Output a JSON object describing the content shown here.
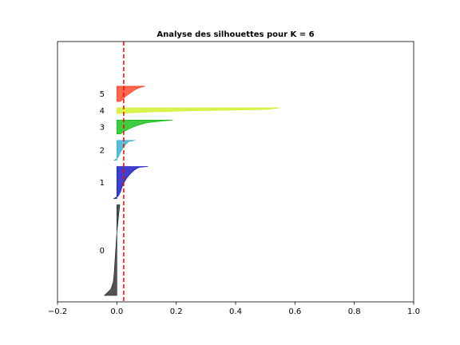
{
  "chart_data": {
    "type": "area",
    "subtype": "silhouette",
    "title": "Analyse des silhouettes pour K = 6",
    "xlabel": "",
    "ylabel": "",
    "xlim": [
      -0.2,
      1.0
    ],
    "x_ticks": [
      -0.2,
      0.0,
      0.2,
      0.4,
      0.6,
      0.8,
      1.0
    ],
    "x_tick_labels": [
      "−0.2",
      "0.0",
      "0.2",
      "0.4",
      "0.6",
      "0.8",
      "1.0"
    ],
    "y_ticks": [],
    "grid": false,
    "reference_line": {
      "x": 0.023,
      "color": "#ff0000",
      "style": "dashed"
    },
    "clusters": [
      {
        "label": "0",
        "color": "#1a1a1a",
        "size": 142,
        "profile": [
          [
            0,
            0.01
          ],
          [
            0.05,
            0.008
          ],
          [
            0.15,
            0.005
          ],
          [
            0.3,
            0.0
          ],
          [
            0.45,
            -0.003
          ],
          [
            0.6,
            -0.006
          ],
          [
            0.75,
            -0.009
          ],
          [
            0.85,
            -0.012
          ],
          [
            0.93,
            -0.02
          ],
          [
            1.0,
            -0.042
          ]
        ]
      },
      {
        "label": "1",
        "color": "#0000bb",
        "size": 50,
        "profile": [
          [
            0,
            0.105
          ],
          [
            0.02,
            0.075
          ],
          [
            0.1,
            0.06
          ],
          [
            0.2,
            0.048
          ],
          [
            0.35,
            0.034
          ],
          [
            0.5,
            0.024
          ],
          [
            0.65,
            0.017
          ],
          [
            0.8,
            0.012
          ],
          [
            0.92,
            0.005
          ],
          [
            1.0,
            -0.01
          ]
        ]
      },
      {
        "label": "2",
        "color": "#22aacc",
        "size": 31,
        "profile": [
          [
            0,
            0.062
          ],
          [
            0.05,
            0.04
          ],
          [
            0.2,
            0.03
          ],
          [
            0.4,
            0.02
          ],
          [
            0.6,
            0.012
          ],
          [
            0.8,
            0.006
          ],
          [
            0.92,
            0.0
          ],
          [
            1.0,
            -0.01
          ]
        ]
      },
      {
        "label": "3",
        "color": "#00bb00",
        "size": 22,
        "profile": [
          [
            0,
            0.188
          ],
          [
            0.08,
            0.15
          ],
          [
            0.2,
            0.1
          ],
          [
            0.35,
            0.075
          ],
          [
            0.5,
            0.055
          ],
          [
            0.65,
            0.04
          ],
          [
            0.8,
            0.025
          ],
          [
            1.0,
            0.012
          ]
        ]
      },
      {
        "label": "4",
        "color": "#ccee11",
        "size": 9,
        "profile": [
          [
            0,
            0.548
          ],
          [
            0.3,
            0.5
          ],
          [
            0.5,
            0.25
          ],
          [
            0.7,
            0.12
          ],
          [
            0.85,
            0.05
          ],
          [
            1.0,
            0.0
          ]
        ]
      },
      {
        "label": "5",
        "color": "#ff3311",
        "size": 24,
        "profile": [
          [
            0,
            0.095
          ],
          [
            0.1,
            0.075
          ],
          [
            0.25,
            0.06
          ],
          [
            0.45,
            0.045
          ],
          [
            0.65,
            0.03
          ],
          [
            0.85,
            0.02
          ],
          [
            1.0,
            0.012
          ]
        ]
      }
    ],
    "total_samples": 338,
    "gap": 10
  }
}
